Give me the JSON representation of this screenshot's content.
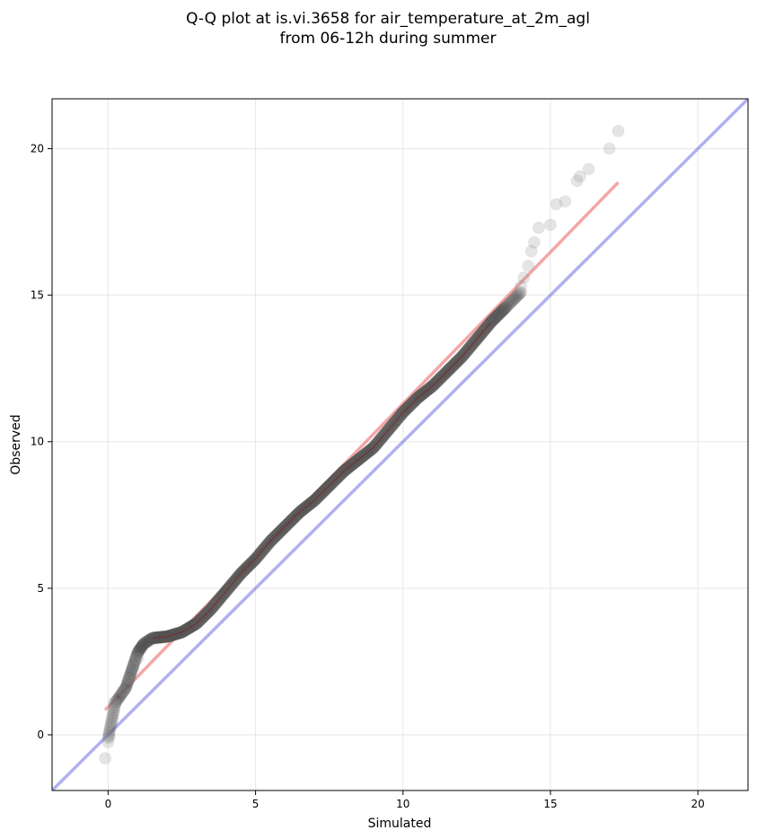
{
  "chart_data": {
    "type": "scatter",
    "title": [
      "Q-Q plot at is.vi.3658 for air_temperature_at_2m_agl",
      "from 06-12h during summer"
    ],
    "xlabel": "Simulated",
    "ylabel": "Observed",
    "xlim": [
      -1.9,
      21.7
    ],
    "ylim": [
      -1.9,
      21.7
    ],
    "xticks": [
      0,
      5,
      10,
      15,
      20
    ],
    "yticks": [
      0,
      5,
      10,
      15,
      20
    ],
    "grid": true,
    "colors": {
      "points": "#555555",
      "fit_line": "#f08080",
      "identity_line": "#7b7be8"
    },
    "identity_line": {
      "x": [
        -1.9,
        21.7
      ],
      "y": [
        -1.9,
        21.7
      ]
    },
    "fit_line": {
      "x": [
        -0.1,
        17.3
      ],
      "y": [
        0.85,
        18.85
      ]
    },
    "quantile_curve": {
      "x": [
        0.0,
        0.25,
        0.6,
        0.8,
        1.0,
        1.2,
        1.5,
        2.0,
        2.5,
        3.0,
        3.5,
        4.0,
        4.5,
        5.0,
        5.5,
        6.0,
        6.5,
        7.0,
        7.5,
        8.0,
        8.5,
        9.0,
        9.5,
        10.0,
        10.5,
        11.0,
        11.5,
        12.0,
        12.5,
        13.0,
        13.5,
        14.0
      ],
      "y": [
        -0.1,
        1.1,
        1.6,
        2.2,
        2.8,
        3.1,
        3.3,
        3.35,
        3.5,
        3.8,
        4.3,
        4.9,
        5.5,
        6.0,
        6.6,
        7.1,
        7.6,
        8.0,
        8.5,
        9.0,
        9.4,
        9.8,
        10.4,
        11.0,
        11.5,
        11.9,
        12.4,
        12.9,
        13.5,
        14.1,
        14.6,
        15.1
      ]
    },
    "points": {
      "x": [
        -0.1,
        0.0,
        0.05,
        0.2,
        0.5,
        0.7,
        0.85,
        1.0,
        14.0,
        14.1,
        14.25,
        14.35,
        14.45,
        14.6,
        15.0,
        15.2,
        15.5,
        15.9,
        16.0,
        16.3,
        17.0,
        17.3
      ],
      "y": [
        -0.8,
        -0.25,
        -0.05,
        1.1,
        1.5,
        1.9,
        2.3,
        2.6,
        15.3,
        15.6,
        16.0,
        16.5,
        16.8,
        17.3,
        17.4,
        18.1,
        18.2,
        18.9,
        19.05,
        19.3,
        20.0,
        20.6
      ]
    }
  }
}
